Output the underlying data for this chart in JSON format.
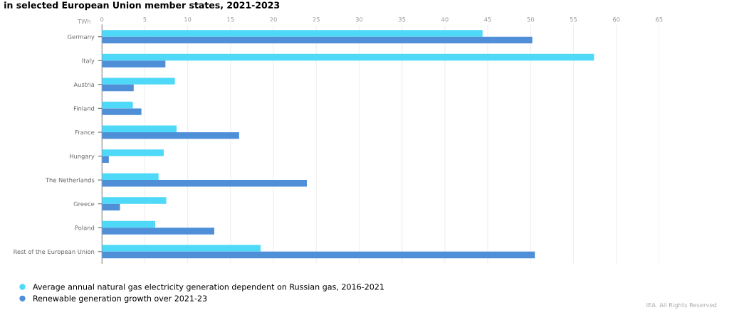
{
  "chart_data": {
    "type": "bar",
    "orientation": "horizontal",
    "title": "in selected European Union member states, 2021-2023",
    "xlabel": "TWh",
    "categories": [
      "Germany",
      "Italy",
      "Austria",
      "Finland",
      "France",
      "Hungary",
      "The Netherlands",
      "Greece",
      "Poland",
      "Rest of the European Union"
    ],
    "series": [
      {
        "name": "Average annual natural gas electricity generation dependent on Russian gas, 2016-2021",
        "color": "#4dd9f7",
        "values": [
          44.4,
          57.4,
          8.5,
          3.6,
          8.7,
          7.2,
          6.6,
          7.5,
          6.2,
          18.5
        ]
      },
      {
        "name": "Renewable generation growth over 2021-23",
        "color": "#4f8fd8",
        "values": [
          50.2,
          7.4,
          3.7,
          4.6,
          16.0,
          0.8,
          23.9,
          2.1,
          13.1,
          50.5
        ]
      }
    ],
    "xlim": [
      0,
      65
    ],
    "xticks": [
      0,
      5,
      10,
      15,
      20,
      25,
      30,
      35,
      40,
      45,
      50,
      55,
      60,
      65
    ],
    "grid": "x",
    "legend": "bottom left",
    "marker": "circle",
    "annotations": [
      "IEA. All Rights Reserved"
    ]
  }
}
